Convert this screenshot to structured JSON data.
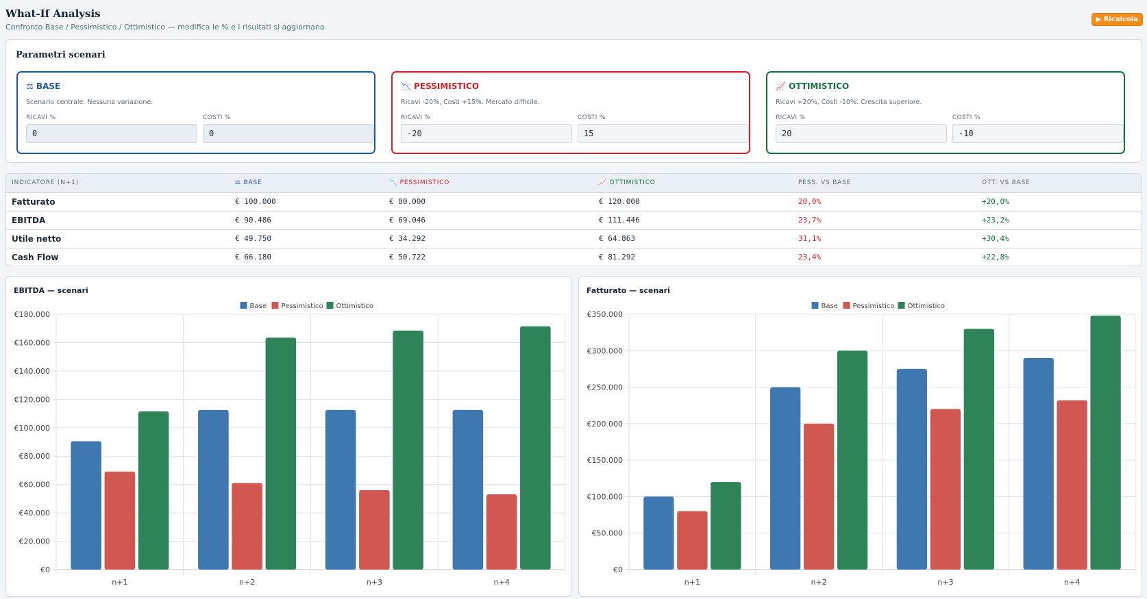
{
  "header": {
    "title": "What-If Analysis",
    "subtitle": "Confronto Base / Pessimistico / Ottimistico — modifica le % e i risultati si aggiornano",
    "recalc_label": "▶ Ricalcola"
  },
  "params": {
    "title": "Parametri scenari",
    "scenarios": [
      {
        "title": "⚖ BASE",
        "desc": "Scenario centrale. Nessuna variazione.",
        "ricavi_label": "RICAVI %",
        "ricavi": "0",
        "costi_label": "COSTI %",
        "costi": "0"
      },
      {
        "title": "📉 PESSIMISTICO",
        "desc": "Ricavi -20%, Costi +15%. Mercato difficile.",
        "ricavi_label": "RICAVI %",
        "ricavi": "-20",
        "costi_label": "COSTI %",
        "costi": "15"
      },
      {
        "title": "📈 OTTIMISTICO",
        "desc": "Ricavi +20%, Costi -10%. Crescita superiore.",
        "ricavi_label": "RICAVI %",
        "ricavi": "20",
        "costi_label": "COSTI %",
        "costi": "-10"
      }
    ]
  },
  "table": {
    "headers": [
      "INDICATORE (N+1)",
      "⚖ BASE",
      "📉 PESSIMISTICO",
      "📈 OTTIMISTICO",
      "PESS. VS BASE",
      "OTT. VS BASE"
    ],
    "rows": [
      {
        "ind": "Fatturato",
        "base": "€ 100.000",
        "pess": "€ 80.000",
        "ott": "€ 120.000",
        "pess_vs": "20,0%",
        "ott_vs": "+20,0%"
      },
      {
        "ind": "EBITDA",
        "base": "€ 90.486",
        "pess": "€ 69.046",
        "ott": "€ 111.446",
        "pess_vs": "23,7%",
        "ott_vs": "+23,2%"
      },
      {
        "ind": "Utile netto",
        "base": "€ 49.750",
        "pess": "€ 34.292",
        "ott": "€ 64.863",
        "pess_vs": "31,1%",
        "ott_vs": "+30,4%"
      },
      {
        "ind": "Cash Flow",
        "base": "€ 66.180",
        "pess": "€ 50.722",
        "ott": "€ 81.292",
        "pess_vs": "23,4%",
        "ott_vs": "+22,8%"
      }
    ]
  },
  "colors": {
    "base": "#3f78b0",
    "pess": "#d15751",
    "ott": "#2e8358"
  },
  "chart_data": [
    {
      "type": "bar",
      "title": "EBITDA — scenari",
      "categories": [
        "n+1",
        "n+2",
        "n+3",
        "n+4"
      ],
      "series": [
        {
          "name": "Base",
          "values": [
            90486,
            112500,
            112500,
            112500
          ]
        },
        {
          "name": "Pessimistico",
          "values": [
            69046,
            61000,
            56000,
            53000
          ]
        },
        {
          "name": "Ottimistico",
          "values": [
            111446,
            163500,
            168500,
            171500
          ]
        }
      ],
      "ylim": [
        0,
        180000
      ],
      "yticks": [
        0,
        20000,
        40000,
        60000,
        80000,
        100000,
        120000,
        140000,
        160000,
        180000
      ],
      "ytick_labels": [
        "€0",
        "€20.000",
        "€40.000",
        "€60.000",
        "€80.000",
        "€100.000",
        "€120.000",
        "€140.000",
        "€160.000",
        "€180.000"
      ],
      "legend": "top-center",
      "grid": true
    },
    {
      "type": "bar",
      "title": "Fatturato — scenari",
      "categories": [
        "n+1",
        "n+2",
        "n+3",
        "n+4"
      ],
      "series": [
        {
          "name": "Base",
          "values": [
            100000,
            250000,
            275000,
            290000
          ]
        },
        {
          "name": "Pessimistico",
          "values": [
            80000,
            200000,
            220000,
            232000
          ]
        },
        {
          "name": "Ottimistico",
          "values": [
            120000,
            300000,
            330000,
            348000
          ]
        }
      ],
      "ylim": [
        0,
        350000
      ],
      "yticks": [
        0,
        50000,
        100000,
        150000,
        200000,
        250000,
        300000,
        350000
      ],
      "ytick_labels": [
        "€0",
        "€50.000",
        "€100.000",
        "€150.000",
        "€200.000",
        "€250.000",
        "€300.000",
        "€350.000"
      ],
      "legend": "top-center",
      "grid": true
    }
  ]
}
